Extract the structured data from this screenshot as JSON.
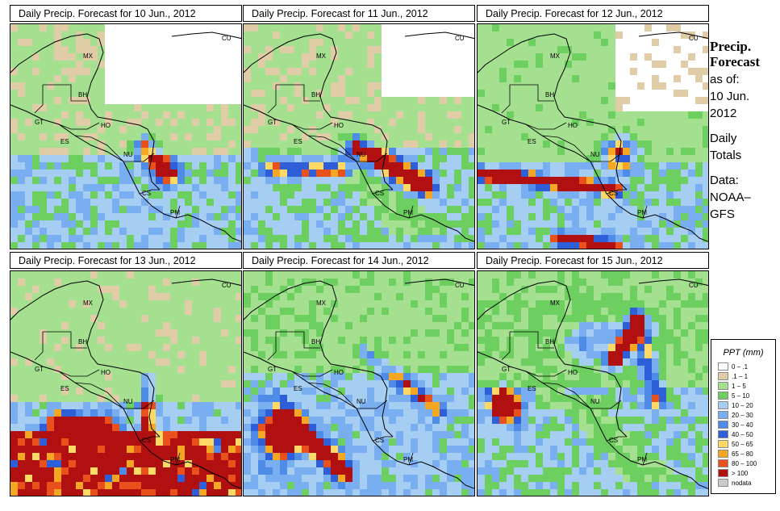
{
  "panels": [
    {
      "title": "Daily Precip. Forecast for  10 Jun., 2012",
      "day": 0
    },
    {
      "title": "Daily Precip. Forecast for  11 Jun., 2012",
      "day": 1
    },
    {
      "title": "Daily Precip. Forecast for  12 Jun., 2012",
      "day": 2
    },
    {
      "title": "Daily Precip. Forecast for  13 Jun., 2012",
      "day": 3
    },
    {
      "title": "Daily Precip. Forecast for  14 Jun., 2012",
      "day": 4
    },
    {
      "title": "Daily Precip. Forecast for  15 Jun., 2012",
      "day": 5
    }
  ],
  "country_labels": [
    "MX",
    "BH",
    "GT",
    "HO",
    "ES",
    "NU",
    "CS",
    "PM",
    "CU"
  ],
  "sidebar": {
    "heading1": "Precip.",
    "heading2": "Forecast",
    "asof": "as of:",
    "date1": "10 Jun.",
    "date2": "2012",
    "daily1": "Daily",
    "daily2": "Totals",
    "data1": "Data:",
    "data2": "NOAA–",
    "data3": "GFS"
  },
  "legend": {
    "title": "PPT (mm)",
    "items": [
      {
        "label": "0 – .1",
        "color": "#ffffff"
      },
      {
        "label": ".1 – 1",
        "color": "#e0cda8"
      },
      {
        "label": "1 – 5",
        "color": "#a4e08f"
      },
      {
        "label": "5 – 10",
        "color": "#6dcf5f"
      },
      {
        "label": "10 – 20",
        "color": "#a6cdf2"
      },
      {
        "label": "20 – 30",
        "color": "#79aef0"
      },
      {
        "label": "30 – 40",
        "color": "#4f8ce8"
      },
      {
        "label": "40 – 50",
        "color": "#2f5fd8"
      },
      {
        "label": "50 – 65",
        "color": "#ffd966"
      },
      {
        "label": "65 – 80",
        "color": "#f5a623"
      },
      {
        "label": "80 – 100",
        "color": "#e8501c"
      },
      {
        "label": "> 100",
        "color": "#b01010"
      },
      {
        "label": "nodata",
        "color": "#c9c9c9"
      }
    ]
  }
}
